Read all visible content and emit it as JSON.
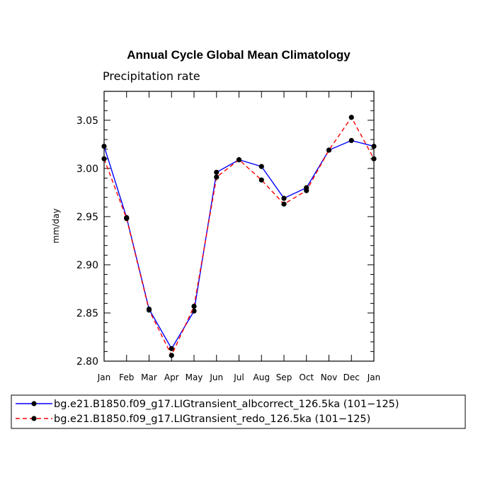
{
  "chart_data": {
    "type": "line",
    "title": "Annual Cycle Global Mean Climatology",
    "subtitle": "Precipitation rate",
    "xlabel": "",
    "ylabel": "mm/day",
    "categories": [
      "Jan",
      "Feb",
      "Mar",
      "Apr",
      "May",
      "Jun",
      "Jul",
      "Aug",
      "Sep",
      "Oct",
      "Nov",
      "Dec",
      "Jan"
    ],
    "ylim": [
      2.8,
      3.08
    ],
    "yticks": [
      2.8,
      2.85,
      2.9,
      2.95,
      3.0,
      3.05
    ],
    "ytick_labels": [
      "2.80",
      "2.85",
      "2.90",
      "2.95",
      "3.00",
      "3.05"
    ],
    "series": [
      {
        "name": "bg.e21.B1850.f09_g17.LIGtransient_albcorrect_126.5ka (101−125)",
        "color": "#0000ff",
        "dash": "solid",
        "values": [
          3.023,
          2.949,
          2.854,
          2.813,
          2.852,
          2.996,
          3.009,
          3.002,
          2.969,
          2.98,
          3.019,
          3.029,
          3.023
        ]
      },
      {
        "name": "bg.e21.B1850.f09_g17.LIGtransient_redo_126.5ka (101−125)",
        "color": "#ff0000",
        "dash": "dashed",
        "values": [
          3.01,
          2.948,
          2.853,
          2.806,
          2.857,
          2.991,
          3.009,
          2.988,
          2.963,
          2.977,
          3.019,
          3.053,
          3.01
        ]
      }
    ]
  }
}
